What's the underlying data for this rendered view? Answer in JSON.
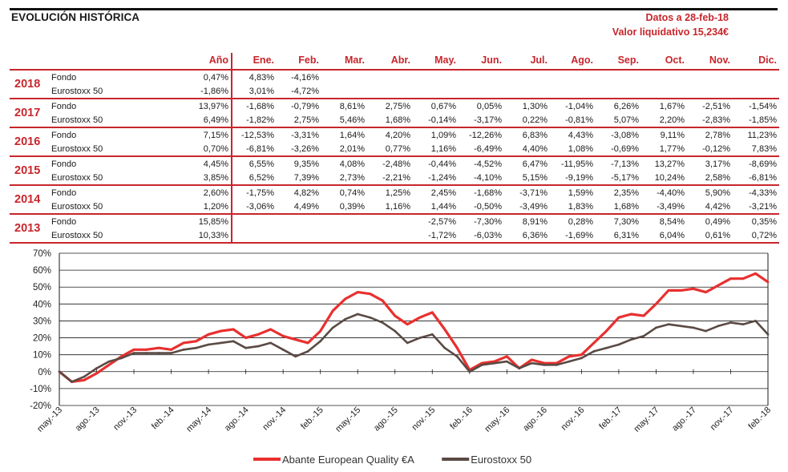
{
  "header": {
    "title": "EVOLUCIÓN HISTÓRICA",
    "date_text": "Datos a 28-feb-18",
    "nav_text": "Valor liquidativo 15,234€"
  },
  "colors": {
    "accent": "#c8262c",
    "fund": "#e8302f",
    "index": "#5a4a44"
  },
  "table": {
    "year_header": "Año",
    "months": [
      "Ene.",
      "Feb.",
      "Mar.",
      "Abr.",
      "May.",
      "Jun.",
      "Jul.",
      "Ago.",
      "Sep.",
      "Oct.",
      "Nov.",
      "Dic."
    ],
    "rows": [
      {
        "year": "2018",
        "lines": [
          {
            "name": "Fondo",
            "ytd": "0,47%",
            "m": [
              "4,83%",
              "-4,16%",
              "",
              "",
              "",
              "",
              "",
              "",
              "",
              "",
              "",
              ""
            ]
          },
          {
            "name": "Eurostoxx 50",
            "ytd": "-1,86%",
            "m": [
              "3,01%",
              "-4,72%",
              "",
              "",
              "",
              "",
              "",
              "",
              "",
              "",
              "",
              ""
            ]
          }
        ]
      },
      {
        "year": "2017",
        "lines": [
          {
            "name": "Fondo",
            "ytd": "13,97%",
            "m": [
              "-1,68%",
              "-0,79%",
              "8,61%",
              "2,75%",
              "0,67%",
              "0,05%",
              "1,30%",
              "-1,04%",
              "6,26%",
              "1,67%",
              "-2,51%",
              "-1,54%"
            ]
          },
          {
            "name": "Eurostoxx 50",
            "ytd": "6,49%",
            "m": [
              "-1,82%",
              "2,75%",
              "5,46%",
              "1,68%",
              "-0,14%",
              "-3,17%",
              "0,22%",
              "-0,81%",
              "5,07%",
              "2,20%",
              "-2,83%",
              "-1,85%"
            ]
          }
        ]
      },
      {
        "year": "2016",
        "lines": [
          {
            "name": "Fondo",
            "ytd": "7,15%",
            "m": [
              "-12,53%",
              "-3,31%",
              "1,64%",
              "4,20%",
              "1,09%",
              "-12,26%",
              "6,83%",
              "4,43%",
              "-3,08%",
              "9,11%",
              "2,78%",
              "11,23%"
            ]
          },
          {
            "name": "Eurostoxx 50",
            "ytd": "0,70%",
            "m": [
              "-6,81%",
              "-3,26%",
              "2,01%",
              "0,77%",
              "1,16%",
              "-6,49%",
              "4,40%",
              "1,08%",
              "-0,69%",
              "1,77%",
              "-0,12%",
              "7,83%"
            ]
          }
        ]
      },
      {
        "year": "2015",
        "lines": [
          {
            "name": "Fondo",
            "ytd": "4,45%",
            "m": [
              "6,55%",
              "9,35%",
              "4,08%",
              "-2,48%",
              "-0,44%",
              "-4,52%",
              "6,47%",
              "-11,95%",
              "-7,13%",
              "13,27%",
              "3,17%",
              "-8,69%"
            ]
          },
          {
            "name": "Eurostoxx 50",
            "ytd": "3,85%",
            "m": [
              "6,52%",
              "7,39%",
              "2,73%",
              "-2,21%",
              "-1,24%",
              "-4,10%",
              "5,15%",
              "-9,19%",
              "-5,17%",
              "10,24%",
              "2,58%",
              "-6,81%"
            ]
          }
        ]
      },
      {
        "year": "2014",
        "lines": [
          {
            "name": "Fondo",
            "ytd": "2,60%",
            "m": [
              "-1,75%",
              "4,82%",
              "0,74%",
              "1,25%",
              "2,45%",
              "-1,68%",
              "-3,71%",
              "1,59%",
              "2,35%",
              "-4,40%",
              "5,90%",
              "-4,33%"
            ]
          },
          {
            "name": "Eurostoxx 50",
            "ytd": "1,20%",
            "m": [
              "-3,06%",
              "4,49%",
              "0,39%",
              "1,16%",
              "1,44%",
              "-0,50%",
              "-3,49%",
              "1,83%",
              "1,68%",
              "-3,49%",
              "4,42%",
              "-3,21%"
            ]
          }
        ]
      },
      {
        "year": "2013",
        "lines": [
          {
            "name": "Fondo",
            "ytd": "15,85%",
            "m": [
              "",
              "",
              "",
              "",
              "-2,57%",
              "-7,30%",
              "8,91%",
              "0,28%",
              "7,30%",
              "8,54%",
              "0,49%",
              "0,35%"
            ]
          },
          {
            "name": "Eurostoxx 50",
            "ytd": "10,33%",
            "m": [
              "",
              "",
              "",
              "",
              "-1,72%",
              "-6,03%",
              "6,36%",
              "-1,69%",
              "6,31%",
              "6,04%",
              "0,61%",
              "0,72%"
            ]
          }
        ]
      }
    ]
  },
  "chart_data": {
    "type": "line",
    "x": [
      "may.-13",
      "jun.-13",
      "jul.-13",
      "ago.-13",
      "sep.-13",
      "oct.-13",
      "nov.-13",
      "dic.-13",
      "ene.-14",
      "feb.-14",
      "mar.-14",
      "abr.-14",
      "may.-14",
      "jun.-14",
      "jul.-14",
      "ago.-14",
      "sep.-14",
      "oct.-14",
      "nov.-14",
      "dic.-14",
      "ene.-15",
      "feb.-15",
      "mar.-15",
      "abr.-15",
      "may.-15",
      "jun.-15",
      "jul.-15",
      "ago.-15",
      "sep.-15",
      "oct.-15",
      "nov.-15",
      "dic.-15",
      "ene.-16",
      "feb.-16",
      "mar.-16",
      "abr.-16",
      "may.-16",
      "jun.-16",
      "jul.-16",
      "ago.-16",
      "sep.-16",
      "oct.-16",
      "nov.-16",
      "dic.-16",
      "ene.-17",
      "feb.-17",
      "mar.-17",
      "abr.-17",
      "may.-17",
      "jun.-17",
      "jul.-17",
      "ago.-17",
      "sep.-17",
      "oct.-17",
      "nov.-17",
      "dic.-17",
      "ene.-18",
      "feb.-18"
    ],
    "tick_labels": [
      "may.-13",
      "ago.-13",
      "nov.-13",
      "feb.-14",
      "may.-14",
      "ago.-14",
      "nov.-14",
      "feb.-15",
      "may.-15",
      "ago.-15",
      "nov.-15",
      "feb.-16",
      "may.-16",
      "ago.-16",
      "nov.-16",
      "feb.-17",
      "may.-17",
      "ago.-17",
      "nov.-17",
      "feb.-18"
    ],
    "y_ticks": [
      "-20%",
      "-10%",
      "0%",
      "10%",
      "20%",
      "30%",
      "40%",
      "50%",
      "60%",
      "70%"
    ],
    "ylim": [
      -20,
      70
    ],
    "grid": true,
    "legend_position": "bottom",
    "series": [
      {
        "name": "Abante European Quality €A",
        "color": "#e8302f",
        "values": [
          0,
          -6,
          -5,
          -1,
          4,
          9,
          13,
          13,
          14,
          13,
          17,
          18,
          22,
          24,
          25,
          20,
          22,
          25,
          21,
          19,
          17,
          24,
          36,
          43,
          47,
          46,
          42,
          33,
          28,
          32,
          35,
          25,
          14,
          1,
          5,
          6,
          9,
          2,
          7,
          5,
          5,
          9,
          10,
          17,
          24,
          32,
          34,
          33,
          40,
          48,
          48,
          49,
          47,
          51,
          55,
          55,
          58,
          53
        ]
      },
      {
        "name": "Eurostoxx 50",
        "color": "#5a4a44",
        "values": [
          0,
          -6,
          -3,
          2,
          6,
          8,
          11,
          11,
          11,
          11,
          13,
          14,
          16,
          17,
          18,
          14,
          15,
          17,
          13,
          9,
          12,
          18,
          26,
          31,
          34,
          32,
          29,
          24,
          17,
          20,
          22,
          14,
          9,
          0,
          4,
          5,
          6,
          2,
          5,
          4,
          4,
          6,
          8,
          12,
          14,
          16,
          19,
          21,
          26,
          28,
          27,
          26,
          24,
          27,
          29,
          28,
          30,
          22
        ]
      }
    ]
  }
}
